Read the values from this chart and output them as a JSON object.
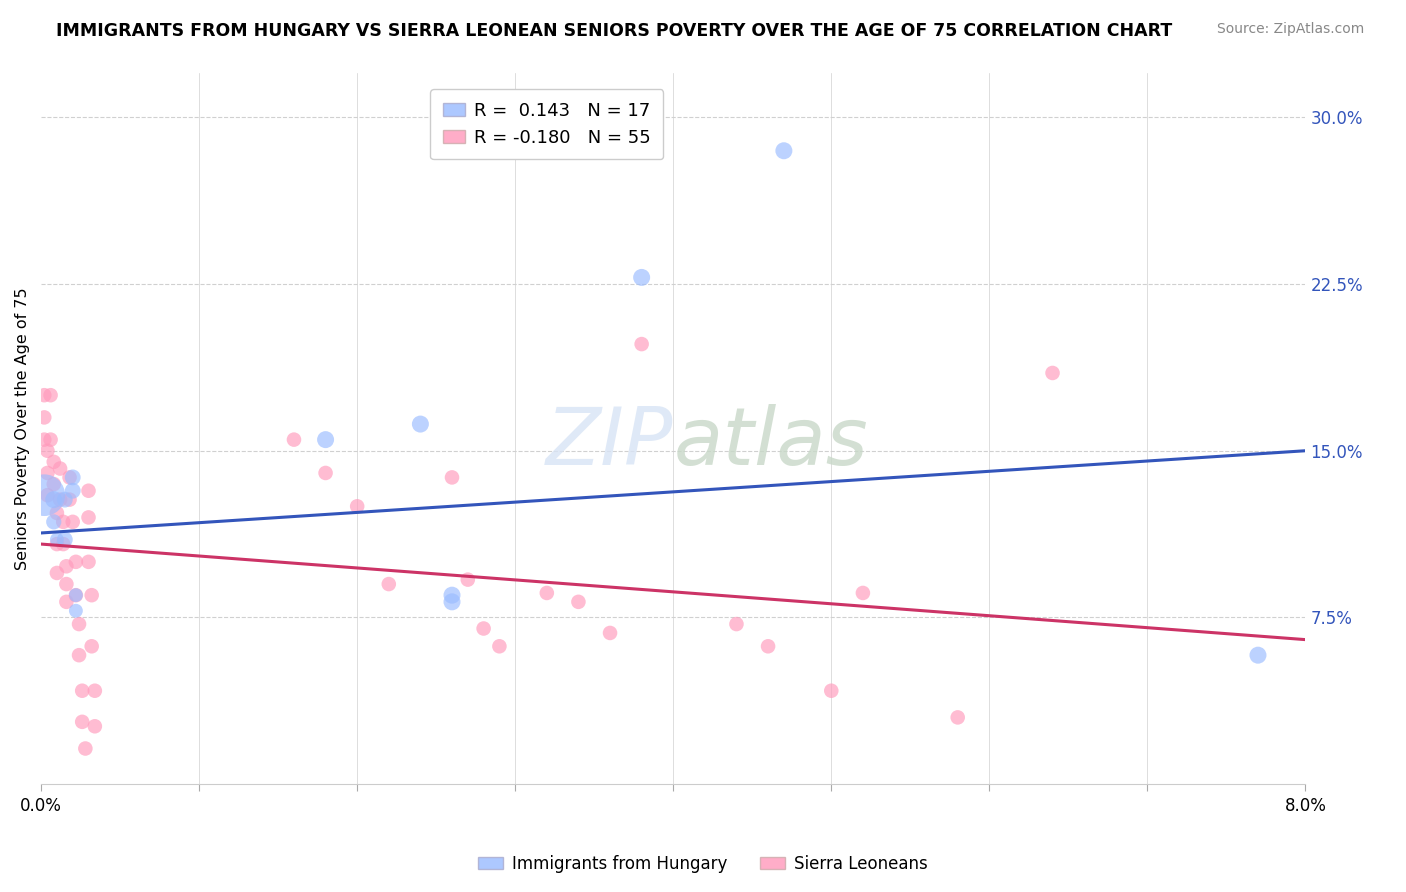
{
  "title": "IMMIGRANTS FROM HUNGARY VS SIERRA LEONEAN SENIORS POVERTY OVER THE AGE OF 75 CORRELATION CHART",
  "source": "Source: ZipAtlas.com",
  "ylabel": "Seniors Poverty Over the Age of 75",
  "xlim": [
    0.0,
    0.08
  ],
  "ylim": [
    0.0,
    0.32
  ],
  "yticks_right": [
    0.075,
    0.15,
    0.225,
    0.3
  ],
  "yticklabels_right": [
    "7.5%",
    "15.0%",
    "22.5%",
    "30.0%"
  ],
  "grid_color": "#d0d0d0",
  "background_color": "#ffffff",
  "blue_color": "#99bbff",
  "pink_color": "#ff99bb",
  "blue_line_color": "#3355bb",
  "pink_line_color": "#cc3366",
  "legend_r_blue": "0.143",
  "legend_n_blue": "17",
  "legend_r_pink": "-0.180",
  "legend_n_pink": "55",
  "legend_label_blue": "Immigrants from Hungary",
  "legend_label_pink": "Sierra Leoneans",
  "blue_trend": [
    0.0,
    0.08,
    0.113,
    0.15
  ],
  "pink_trend": [
    0.0,
    0.08,
    0.108,
    0.065
  ],
  "blue_points": [
    [
      0.0008,
      0.128
    ],
    [
      0.0008,
      0.118
    ],
    [
      0.001,
      0.11
    ],
    [
      0.0002,
      0.13
    ],
    [
      0.0015,
      0.128
    ],
    [
      0.0015,
      0.11
    ],
    [
      0.002,
      0.138
    ],
    [
      0.002,
      0.132
    ],
    [
      0.0022,
      0.085
    ],
    [
      0.0022,
      0.078
    ],
    [
      0.018,
      0.155
    ],
    [
      0.024,
      0.162
    ],
    [
      0.026,
      0.085
    ],
    [
      0.026,
      0.082
    ],
    [
      0.038,
      0.228
    ],
    [
      0.047,
      0.285
    ],
    [
      0.077,
      0.058
    ]
  ],
  "blue_sizes": [
    150,
    120,
    100,
    900,
    130,
    130,
    130,
    130,
    100,
    100,
    150,
    150,
    150,
    150,
    150,
    150,
    150
  ],
  "pink_points": [
    [
      0.0002,
      0.175
    ],
    [
      0.0002,
      0.165
    ],
    [
      0.0002,
      0.155
    ],
    [
      0.0004,
      0.15
    ],
    [
      0.0004,
      0.14
    ],
    [
      0.0004,
      0.13
    ],
    [
      0.0006,
      0.175
    ],
    [
      0.0006,
      0.155
    ],
    [
      0.0008,
      0.145
    ],
    [
      0.0008,
      0.135
    ],
    [
      0.001,
      0.122
    ],
    [
      0.001,
      0.108
    ],
    [
      0.001,
      0.095
    ],
    [
      0.0012,
      0.142
    ],
    [
      0.0012,
      0.128
    ],
    [
      0.0014,
      0.118
    ],
    [
      0.0014,
      0.108
    ],
    [
      0.0016,
      0.098
    ],
    [
      0.0016,
      0.09
    ],
    [
      0.0016,
      0.082
    ],
    [
      0.0018,
      0.138
    ],
    [
      0.0018,
      0.128
    ],
    [
      0.002,
      0.118
    ],
    [
      0.0022,
      0.1
    ],
    [
      0.0022,
      0.085
    ],
    [
      0.0024,
      0.072
    ],
    [
      0.0024,
      0.058
    ],
    [
      0.0026,
      0.042
    ],
    [
      0.0026,
      0.028
    ],
    [
      0.0028,
      0.016
    ],
    [
      0.003,
      0.132
    ],
    [
      0.003,
      0.12
    ],
    [
      0.003,
      0.1
    ],
    [
      0.0032,
      0.085
    ],
    [
      0.0032,
      0.062
    ],
    [
      0.0034,
      0.042
    ],
    [
      0.0034,
      0.026
    ],
    [
      0.016,
      0.155
    ],
    [
      0.018,
      0.14
    ],
    [
      0.02,
      0.125
    ],
    [
      0.022,
      0.09
    ],
    [
      0.026,
      0.138
    ],
    [
      0.027,
      0.092
    ],
    [
      0.028,
      0.07
    ],
    [
      0.029,
      0.062
    ],
    [
      0.032,
      0.086
    ],
    [
      0.034,
      0.082
    ],
    [
      0.036,
      0.068
    ],
    [
      0.038,
      0.198
    ],
    [
      0.044,
      0.072
    ],
    [
      0.046,
      0.062
    ],
    [
      0.05,
      0.042
    ],
    [
      0.052,
      0.086
    ],
    [
      0.058,
      0.03
    ],
    [
      0.064,
      0.185
    ]
  ]
}
